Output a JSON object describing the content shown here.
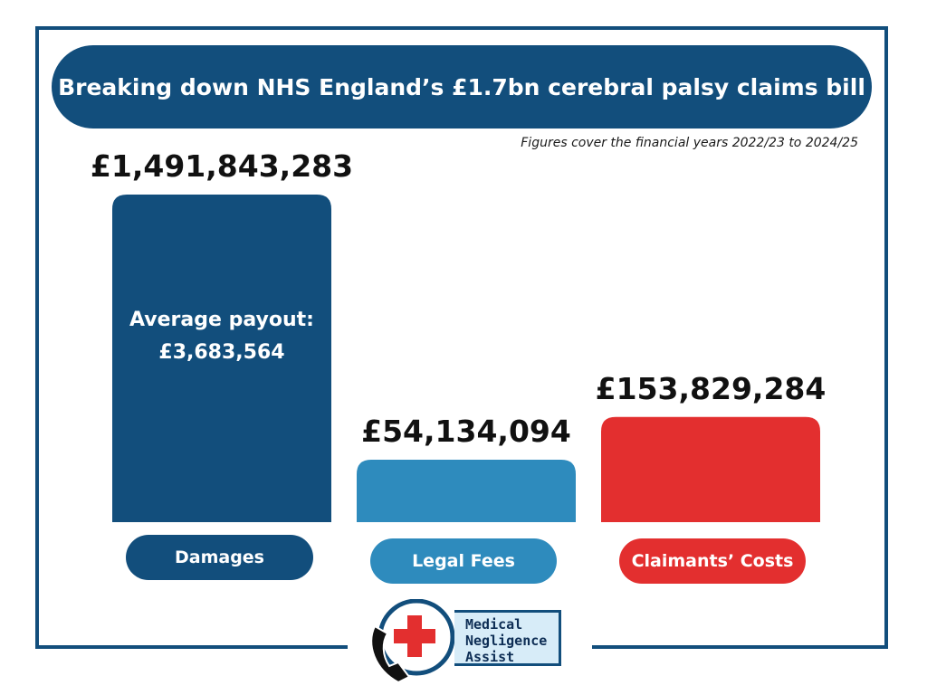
{
  "title": "Breaking down NHS England’s £1.7bn cerebral palsy claims bill",
  "subtitle": "Figures cover the financial years 2022/23 to 2024/25",
  "colors": {
    "navy": "#124e7c",
    "mid_blue": "#2e8bbd",
    "red": "#e32f2f"
  },
  "chart_data": {
    "type": "bar",
    "title": "Breaking down NHS England’s £1.7bn cerebral palsy claims bill",
    "categories": [
      "Damages",
      "Legal Fees",
      "Claimants’ Costs"
    ],
    "values": [
      1491843283,
      54134094,
      153829284
    ],
    "value_labels": [
      "£1,491,843,283",
      "£54,134,094",
      "£153,829,284"
    ],
    "bar_colors": [
      "#124e7c",
      "#2e8bbd",
      "#e32f2f"
    ],
    "annotations": [
      {
        "category": "Damages",
        "lines": [
          "Average payout:",
          "£3,683,564"
        ]
      }
    ],
    "xlabel": "",
    "ylabel": "",
    "grid": false
  },
  "logo": {
    "icon": "phone-with-red-cross-icon",
    "lines": [
      "Medical",
      "Negligence",
      "Assist"
    ]
  }
}
